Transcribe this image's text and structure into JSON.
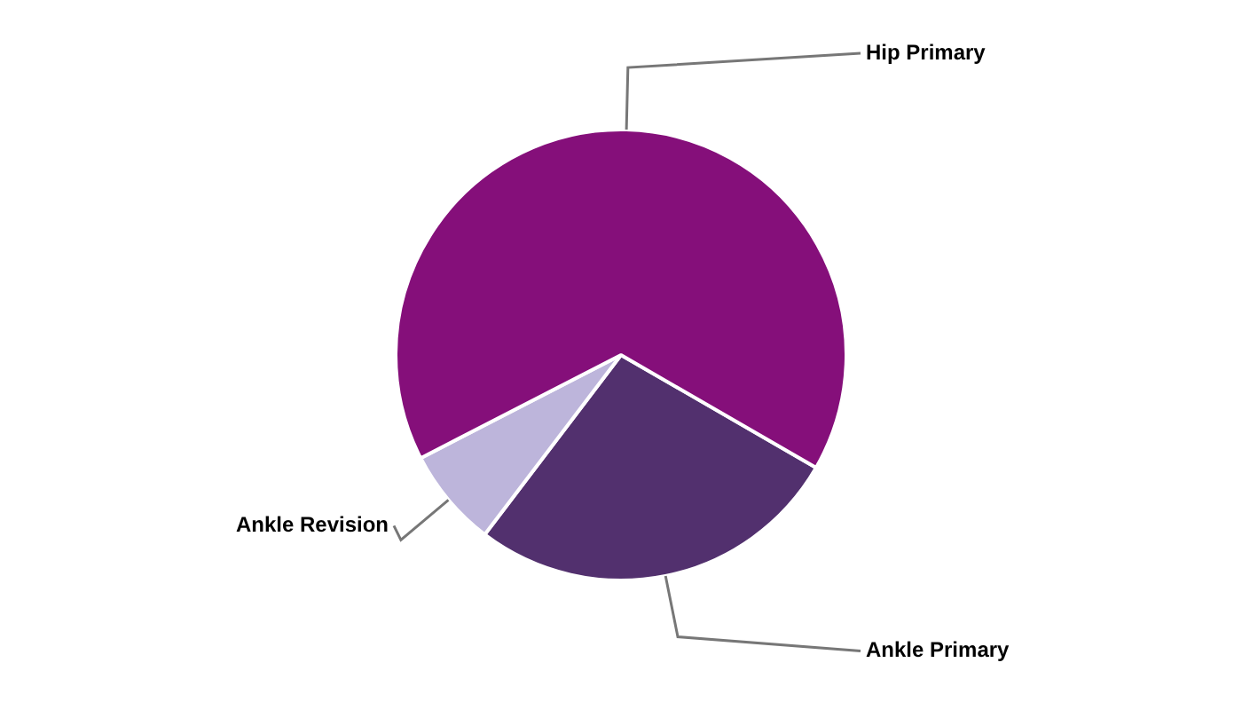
{
  "chart_data": {
    "type": "pie",
    "categories": [
      "Ankle Primary",
      "Ankle Revision",
      "Hip Primary"
    ],
    "values": [
      27.0,
      7.1,
      65.9
    ],
    "colors": [
      "#52306e",
      "#bdb5db",
      "#850f7a"
    ]
  }
}
